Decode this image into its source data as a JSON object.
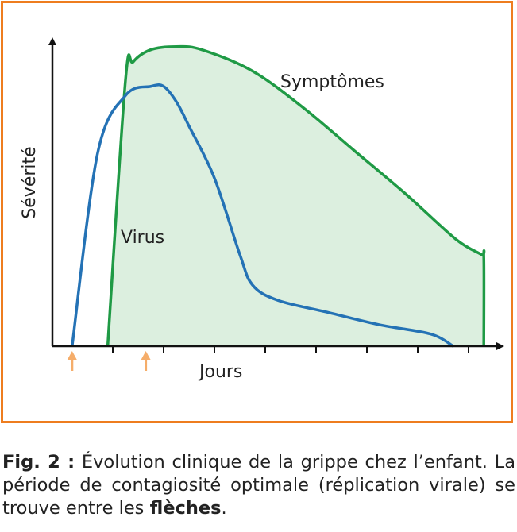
{
  "chart_data": {
    "type": "area",
    "xlabel": "Jours",
    "ylabel": "Sévérité",
    "ticks_x": [
      1,
      2,
      3,
      4,
      5,
      6,
      7,
      8
    ],
    "series": [
      {
        "name": "Symptômes",
        "color": "#1f9a45",
        "fill": "#dcefdf",
        "x": [
          -0.1,
          0.25,
          0.4,
          0.75,
          1.25,
          1.75,
          2.75,
          3.75,
          4.75,
          5.75,
          6.75,
          7.25,
          7.3,
          7.3
        ],
        "y": [
          0,
          0.87,
          0.93,
          0.97,
          0.98,
          0.97,
          0.9,
          0.78,
          0.64,
          0.5,
          0.35,
          0.3,
          0.29,
          0
        ]
      },
      {
        "name": "Virus",
        "color": "#2472b5",
        "x": [
          -0.8,
          -0.3,
          0.25,
          0.75,
          1.0,
          1.25,
          1.5,
          2.0,
          2.5,
          2.75,
          3.25,
          4.25,
          5.25,
          6.25,
          6.7
        ],
        "y": [
          0,
          0.63,
          0.82,
          0.85,
          0.85,
          0.8,
          0.72,
          0.55,
          0.3,
          0.2,
          0.15,
          0.11,
          0.07,
          0.04,
          0
        ]
      }
    ],
    "arrows": [
      {
        "x": -0.8,
        "color": "#f5ad6a"
      },
      {
        "x": 0.65,
        "color": "#f5ad6a"
      }
    ]
  },
  "caption": {
    "prefix": "Fig. 2 :",
    "text": " Évolution clinique de la grippe chez l’enfant. La période de contagiosité optimale (réplication virale) se trouve entre les ",
    "bold_end": "flèches",
    "end": "."
  }
}
